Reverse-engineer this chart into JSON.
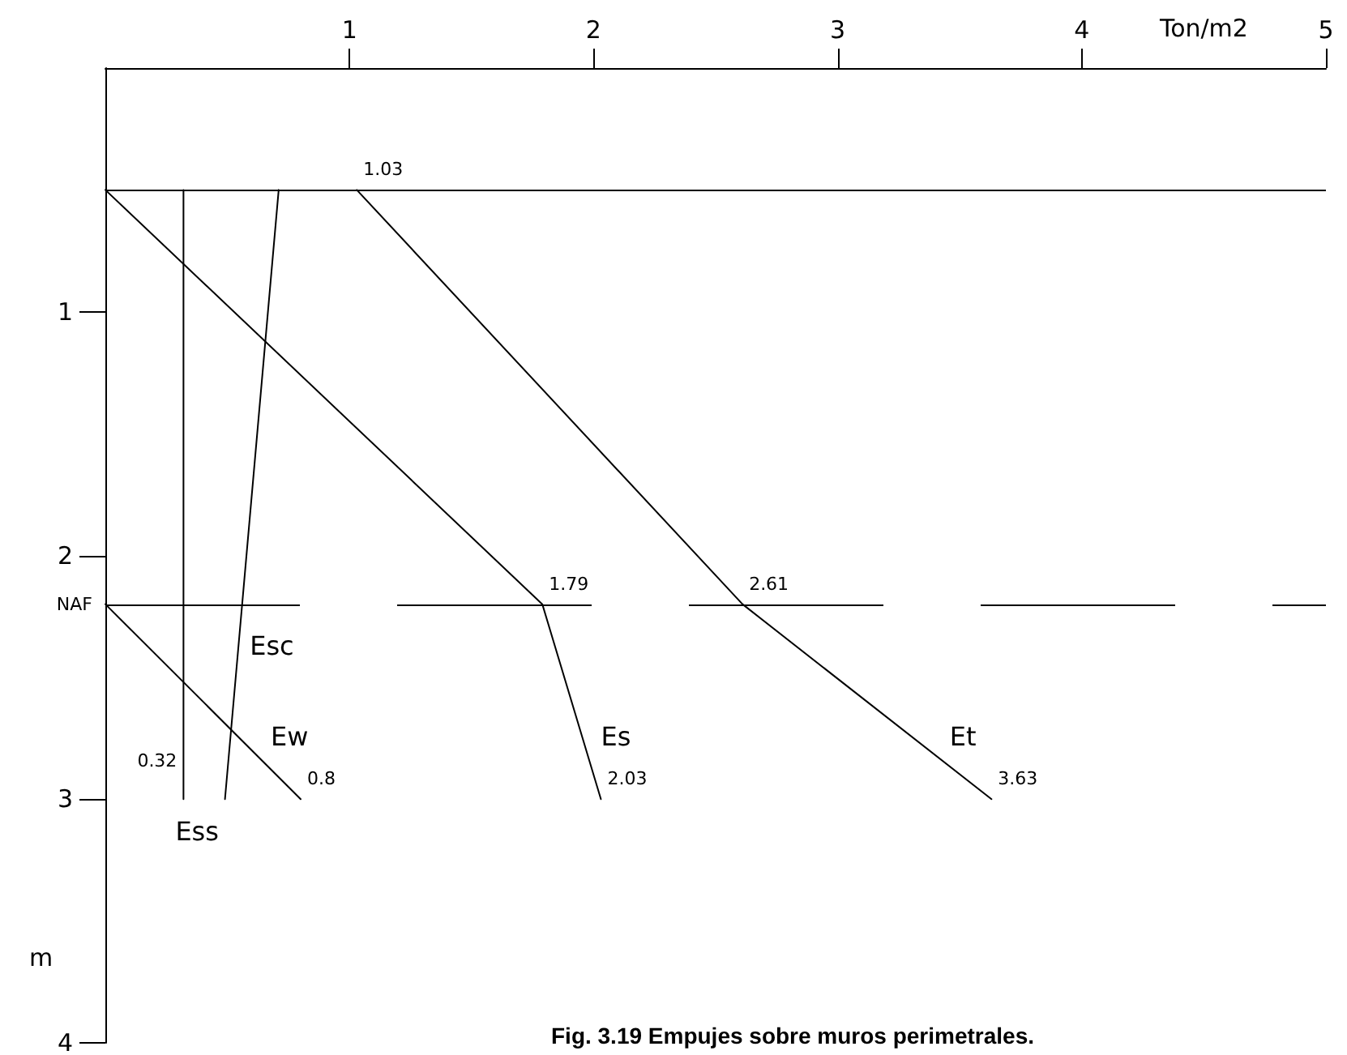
{
  "chart_data": {
    "type": "line",
    "xlabel": "Ton/m2",
    "ylabel": "m",
    "annotations": [
      "Fig. 3.19 Empujes sobre muros perimetrales.",
      {
        "text": "0.32",
        "x": 0.32,
        "y": 3
      },
      {
        "text": "0.8",
        "x": 0.8,
        "y": 3
      },
      {
        "text": "1.79",
        "x": 1.79,
        "y": 2.2
      },
      {
        "text": "2.03",
        "x": 2.03,
        "y": 3
      },
      {
        "text": "1.03",
        "x": 1.03,
        "y": 0.5
      },
      {
        "text": "2.61",
        "x": 2.61,
        "y": 2.2
      },
      {
        "text": "3.63",
        "x": 3.63,
        "y": 3
      }
    ],
    "xlim": [
      0,
      5
    ],
    "xticks": [
      1,
      2,
      3,
      4,
      5
    ],
    "ylim": [
      4,
      0
    ],
    "yticks": [
      1,
      2,
      3,
      4
    ],
    "grid": false,
    "legend": false,
    "marker": "none",
    "line_style": "solid",
    "series": [
      {
        "name": "Esc",
        "color": "#000000",
        "x": [
          0.71,
          0.49
        ],
        "values": [
          0.5,
          3
        ]
      },
      {
        "name": "Ess",
        "color": "#000000",
        "x": [
          0.32,
          0.32
        ],
        "values": [
          0.5,
          3
        ]
      },
      {
        "name": "Ew",
        "color": "#000000",
        "x": [
          0,
          0.8
        ],
        "values": [
          2.2,
          3
        ]
      },
      {
        "name": "Es",
        "color": "#000000",
        "x": [
          0,
          1.79,
          2.03
        ],
        "values": [
          0.5,
          2.2,
          3
        ]
      },
      {
        "name": "Et",
        "color": "#000000",
        "x": [
          1.03,
          2.61,
          3.63
        ],
        "values": [
          0.5,
          2.2,
          3
        ]
      }
    ],
    "ref_lines": [
      {
        "axis": "y",
        "value": 0.5,
        "label": null,
        "color": "#000000",
        "line_style": "solid"
      },
      {
        "axis": "y",
        "value": 2.2,
        "label": "NAF",
        "color": "#000000",
        "line_style": "dashed"
      }
    ]
  }
}
